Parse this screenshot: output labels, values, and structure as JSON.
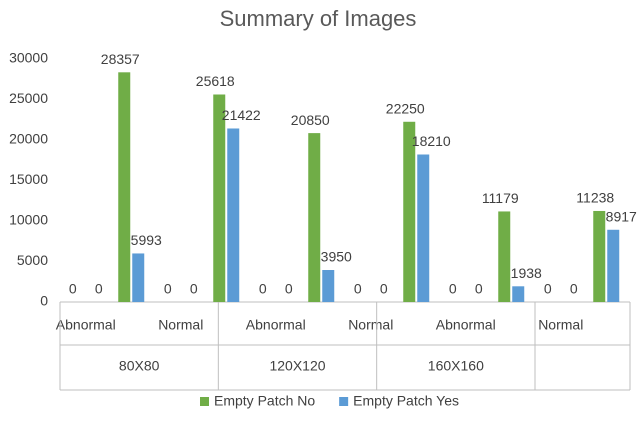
{
  "chart_data": {
    "type": "bar",
    "title": "Summary of Images",
    "categories": [
      "Abnormal",
      null,
      "Normal",
      null,
      "Abnormal",
      null,
      "Normal",
      null,
      "Abnormal",
      null,
      "Normal",
      null
    ],
    "groups": [
      "80X80",
      "120X120",
      "160X160"
    ],
    "series": [
      {
        "name": "Empty Patch No",
        "color": "#70ad47",
        "values": [
          0,
          28357,
          0,
          25618,
          0,
          20850,
          0,
          22250,
          0,
          11179,
          0,
          11238
        ]
      },
      {
        "name": "Empty Patch Yes",
        "color": "#5b9bd5",
        "values": [
          0,
          5993,
          0,
          21422,
          0,
          3950,
          0,
          18210,
          0,
          1938,
          0,
          8917
        ]
      }
    ],
    "ylim": [
      0,
      30000
    ],
    "yticks": [
      0,
      5000,
      10000,
      15000,
      20000,
      25000,
      30000
    ],
    "grid": false,
    "legend": "bottom"
  }
}
